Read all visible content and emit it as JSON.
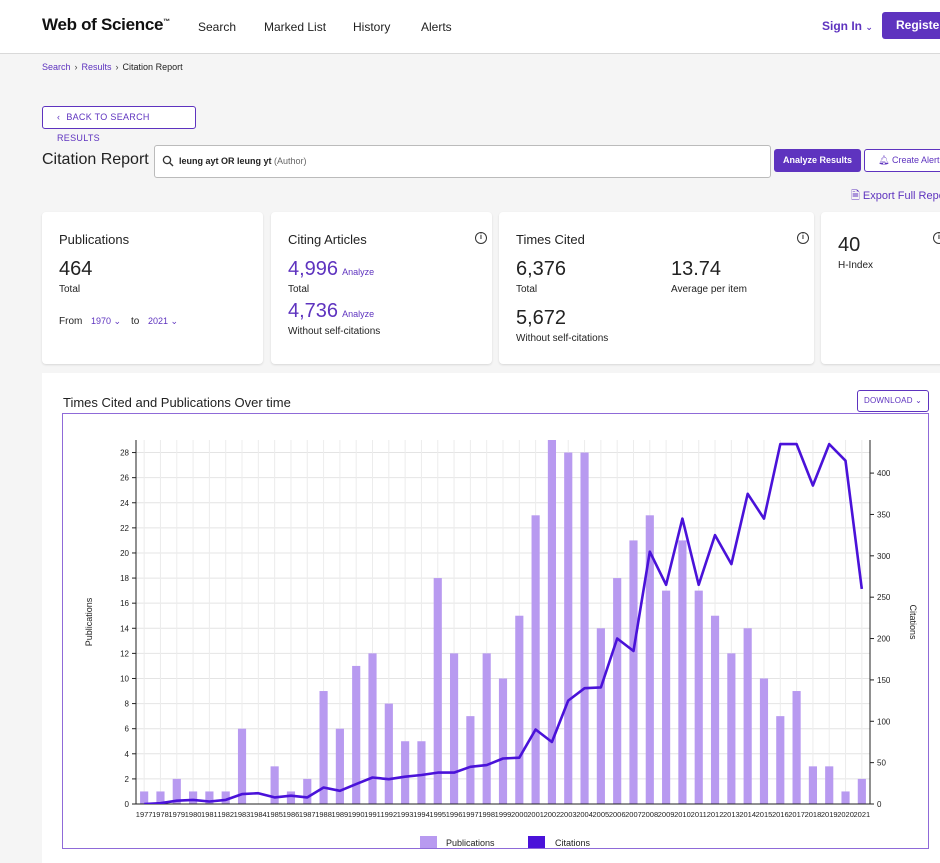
{
  "header": {
    "logo": "Web of Science",
    "logo_tm": "™",
    "nav": [
      "Search",
      "Marked List",
      "History",
      "Alerts"
    ],
    "sign_in": "Sign In",
    "register": "Register"
  },
  "breadcrumb": {
    "search": "Search",
    "results": "Results",
    "current": "Citation Report"
  },
  "back_button": "BACK TO SEARCH RESULTS",
  "page_title": "Citation Report",
  "search": {
    "query": "leung ayt OR leung yt",
    "field": "(Author)"
  },
  "analyze_results": "Analyze Results",
  "create_alert": "Create Alert",
  "export": "Export Full Report",
  "cards": {
    "publications": {
      "title": "Publications",
      "value": "464",
      "label": "Total",
      "from_label": "From",
      "from": "1970",
      "to_label": "to",
      "to": "2021"
    },
    "citing": {
      "title": "Citing Articles",
      "total": "4,996",
      "total_label": "Total",
      "without": "4,736",
      "without_label": "Without self-citations",
      "analyze": "Analyze"
    },
    "times_cited": {
      "title": "Times Cited",
      "total": "6,376",
      "total_label": "Total",
      "avg": "13.74",
      "avg_label": "Average per item",
      "without": "5,672",
      "without_label": "Without self-citations"
    },
    "h_index": {
      "value": "40",
      "label": "H-Index"
    }
  },
  "chart_section": {
    "title": "Times Cited and Publications Over time",
    "download": "DOWNLOAD"
  },
  "chart_data": {
    "type": "bar",
    "categories": [
      "1977",
      "1978",
      "1979",
      "1980",
      "1981",
      "1982",
      "1983",
      "1984",
      "1985",
      "1986",
      "1987",
      "1988",
      "1989",
      "1990",
      "1991",
      "1992",
      "1993",
      "1994",
      "1995",
      "1996",
      "1997",
      "1998",
      "1999",
      "2000",
      "2001",
      "2002",
      "2003",
      "2004",
      "2005",
      "2006",
      "2007",
      "2008",
      "2009",
      "2010",
      "2011",
      "2012",
      "2013",
      "2014",
      "2015",
      "2016",
      "2017",
      "2018",
      "2019",
      "2020",
      "2021"
    ],
    "series": [
      {
        "name": "Publications",
        "type": "bar",
        "axis": "left",
        "color": "#b89af0",
        "values": [
          1,
          1,
          2,
          1,
          1,
          1,
          6,
          0,
          3,
          1,
          2,
          9,
          6,
          11,
          12,
          8,
          5,
          5,
          18,
          12,
          7,
          12,
          10,
          15,
          23,
          29,
          28,
          28,
          14,
          18,
          21,
          23,
          17,
          21,
          17,
          15,
          12,
          14,
          10,
          7,
          9,
          3,
          3,
          1,
          2
        ]
      },
      {
        "name": "Citations",
        "type": "line",
        "axis": "right",
        "color": "#4a12d9",
        "values": [
          0,
          1,
          4,
          5,
          3,
          5,
          12,
          13,
          8,
          10,
          8,
          20,
          16,
          24,
          32,
          30,
          33,
          35,
          38,
          38,
          45,
          47,
          55,
          56,
          90,
          75,
          125,
          140,
          141,
          200,
          185,
          305,
          265,
          345,
          265,
          325,
          290,
          375,
          345,
          435,
          435,
          385,
          435,
          415,
          260
        ]
      }
    ],
    "ylabel": "Publications",
    "ylabel_right": "Citations",
    "ylim": [
      0,
      29
    ],
    "ylim_right": [
      0,
      440
    ],
    "yticks": [
      0,
      2,
      4,
      6,
      8,
      10,
      12,
      14,
      16,
      18,
      20,
      22,
      24,
      26,
      28
    ],
    "yticks_right": [
      0,
      50,
      100,
      150,
      200,
      250,
      300,
      350,
      400
    ],
    "grid": true,
    "legend": "bottom-center"
  }
}
